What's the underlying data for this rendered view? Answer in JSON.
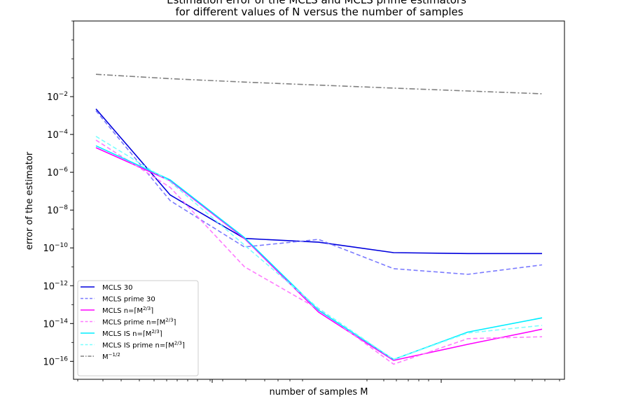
{
  "chart_data": {
    "type": "line",
    "title_lines": [
      "Estimation error of the MCLS and MCLS prime estimators",
      "for different values of N versus the number of samples"
    ],
    "xlabel": "number of samples M",
    "ylabel": "error of the estimator",
    "y_scale": "log",
    "x_scale": "log",
    "ylim_exponent": [
      -16.95,
      2.0
    ],
    "y_ticks_exponent": [
      -16,
      -14,
      -12,
      -10,
      -8,
      -6,
      -4,
      -2
    ],
    "x_tick_labels_shown": false,
    "grid": false,
    "legend_placement": "lower-left",
    "point_count": 7,
    "series": [
      {
        "name": "MCLS 30",
        "color": "#0000dd",
        "dash": "solid",
        "exponents": [
          -2.65,
          -7.2,
          -9.5,
          -9.7,
          -10.25,
          -10.3,
          -10.3
        ]
      },
      {
        "name": "MCLS prime 30",
        "color": "#7b7bff",
        "dash": "dashed",
        "exponents": [
          -2.75,
          -7.5,
          -9.95,
          -9.55,
          -11.1,
          -11.4,
          -10.9
        ]
      },
      {
        "name": "MCLS n=⌈M^{2/3}⌉",
        "color": "#ff00ff",
        "dash": "solid",
        "exponents": [
          -4.7,
          -6.45,
          -9.5,
          -13.4,
          -15.95,
          -15.1,
          -14.3
        ]
      },
      {
        "name": "MCLS prime n=⌈M^{2/3}⌉",
        "color": "#ff7bff",
        "dash": "dashed",
        "exponents": [
          -4.3,
          -6.8,
          -11.0,
          -13.25,
          -16.15,
          -14.8,
          -14.7
        ]
      },
      {
        "name": "MCLS IS n=⌈M^{2/3}⌉",
        "color": "#00eeff",
        "dash": "solid",
        "exponents": [
          -4.6,
          -6.4,
          -9.45,
          -13.3,
          -15.9,
          -14.45,
          -13.7
        ]
      },
      {
        "name": "MCLS IS prime n=⌈M^{2/3}⌉",
        "color": "#7bffff",
        "dash": "dashed",
        "exponents": [
          -4.1,
          -6.5,
          -9.85,
          -13.2,
          -15.9,
          -14.5,
          -14.1
        ]
      },
      {
        "name": "M^{-1/2}",
        "color": "#808080",
        "dash": "dashdot",
        "exponents": [
          -0.82,
          -1.05,
          -1.23,
          -1.39,
          -1.55,
          -1.7,
          -1.85
        ]
      }
    ]
  }
}
